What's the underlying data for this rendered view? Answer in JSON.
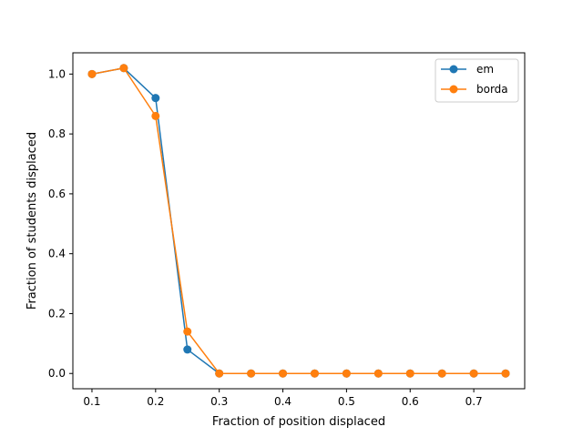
{
  "chart_data": {
    "type": "line",
    "title": "",
    "xlabel": "Fraction of position displaced",
    "ylabel": "Fraction of students displaced",
    "xlim": [
      0.07,
      0.78
    ],
    "ylim": [
      -0.051,
      1.071
    ],
    "x_ticks": [
      0.1,
      0.2,
      0.3,
      0.4,
      0.5,
      0.6,
      0.7
    ],
    "x_tick_labels": [
      "0.1",
      "0.2",
      "0.3",
      "0.4",
      "0.5",
      "0.6",
      "0.7"
    ],
    "y_ticks": [
      0.0,
      0.2,
      0.4,
      0.6,
      0.8,
      1.0
    ],
    "y_tick_labels": [
      "0.0",
      "0.2",
      "0.4",
      "0.6",
      "0.8",
      "1.0"
    ],
    "grid": false,
    "legend_position": "top-right",
    "x": [
      0.1,
      0.15,
      0.2,
      0.25,
      0.3,
      0.35,
      0.4,
      0.45,
      0.5,
      0.55,
      0.6,
      0.65,
      0.7,
      0.75
    ],
    "series": [
      {
        "name": "em",
        "color": "#1f77b4",
        "values": [
          1.0,
          1.02,
          0.92,
          0.08,
          0.0,
          0.0,
          0.0,
          0.0,
          0.0,
          0.0,
          0.0,
          0.0,
          0.0,
          0.0
        ]
      },
      {
        "name": "borda",
        "color": "#ff7f0e",
        "values": [
          1.0,
          1.02,
          0.86,
          0.14,
          0.0,
          0.0,
          0.0,
          0.0,
          0.0,
          0.0,
          0.0,
          0.0,
          0.0,
          0.0
        ]
      }
    ]
  }
}
